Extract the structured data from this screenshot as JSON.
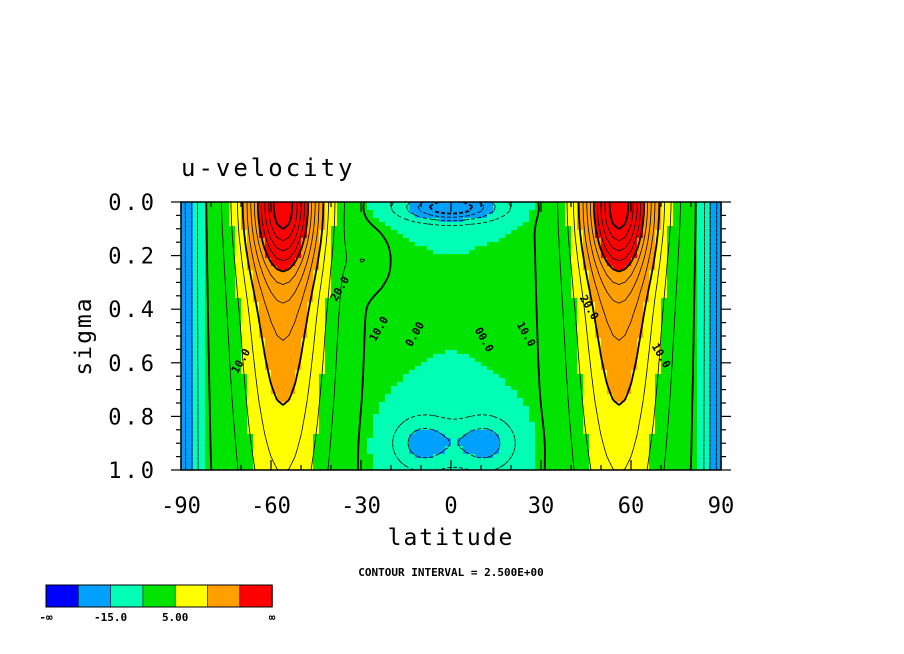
{
  "chart_data": {
    "type": "heatmap",
    "title": "u-velocity",
    "xlabel": "latitude",
    "ylabel": "sigma",
    "x_ticks": [
      "-90",
      "-60",
      "-30",
      "0",
      "30",
      "60",
      "90"
    ],
    "y_ticks": [
      "0.0",
      "0.2",
      "0.4",
      "0.6",
      "0.8",
      "1.0"
    ],
    "xlim": [
      -90,
      90
    ],
    "ylim": [
      0.0,
      1.0
    ],
    "y_reversed": true,
    "contour_interval_text": "CONTOUR INTERVAL = 2.500E+00",
    "contour_interval": 2.5,
    "contour_labels": [
      {
        "text": "20.0",
        "lat": -36,
        "sigma": 0.33
      },
      {
        "text": "10.0",
        "lat": -23,
        "sigma": 0.48
      },
      {
        "text": "0.00",
        "lat": -11,
        "sigma": 0.5
      },
      {
        "text": "10.0",
        "lat": -69,
        "sigma": 0.6
      },
      {
        "text": "00.0",
        "lat": 10,
        "sigma": 0.52
      },
      {
        "text": "10.0",
        "lat": 24,
        "sigma": 0.5
      },
      {
        "text": "20.0",
        "lat": 45,
        "sigma": 0.4
      },
      {
        "text": "10.0",
        "lat": 69,
        "sigma": 0.58
      }
    ],
    "colorbar": {
      "colors": [
        "#0000ff",
        "#00a0ff",
        "#00ffb4",
        "#00e400",
        "#ffff00",
        "#ffa000",
        "#ff0000"
      ],
      "labels": [
        "-∞",
        "-15.0",
        "5.00",
        "∞"
      ]
    }
  }
}
